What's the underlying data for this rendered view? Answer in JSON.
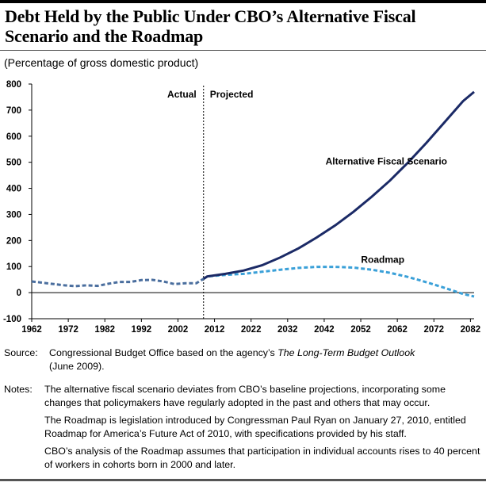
{
  "title_line1": "Debt Held by the Public Under CBO’s Alternative Fiscal",
  "title_line2": "Scenario and the Roadmap",
  "subtitle": "(Percentage of gross domestic product)",
  "source": {
    "label": "Source:",
    "text_before": "Congressional Budget Office based on the agency’s ",
    "italic": "The Long-Term Budget Outlook",
    "text_after": "(June 2009)."
  },
  "notes": {
    "label": "Notes:",
    "para1": "The alternative fiscal scenario deviates from CBO’s baseline projections, incorporating some changes that policymakers have regularly adopted in the past and others that may occur.",
    "para2": "The Roadmap is legislation introduced by Congressman Paul Ryan on January 27, 2010, entitled Roadmap for America’s Future Act of 2010, with specifications provided by his staff.",
    "para3": "CBO’s analysis of the Roadmap assumes that participation in individual accounts rises to 40 percent of workers in cohorts born in 2000 and later."
  },
  "chart_data": {
    "type": "line",
    "title": "Debt Held by the Public Under CBO’s Alternative Fiscal Scenario and the Roadmap",
    "ylabel": "(Percentage of gross domestic product)",
    "xlim": [
      1962,
      2083
    ],
    "ylim": [
      -100,
      800
    ],
    "yticks": [
      -100,
      0,
      100,
      200,
      300,
      400,
      500,
      600,
      700,
      800
    ],
    "xticks": [
      1962,
      1972,
      1982,
      1992,
      2002,
      2012,
      2022,
      2032,
      2042,
      2052,
      2062,
      2072,
      2082
    ],
    "grid": false,
    "divider": {
      "x": 2009,
      "left_label": "Actual",
      "right_label": "Projected"
    },
    "colors": {
      "actual": "#4a6e9e",
      "alternative": "#1b2a66",
      "roadmap": "#3aa0d8"
    },
    "actual": {
      "x": [
        1962,
        1965,
        1968,
        1971,
        1974,
        1977,
        1980,
        1983,
        1986,
        1989,
        1992,
        1995,
        1998,
        2001,
        2004,
        2007,
        2009
      ],
      "y": [
        43,
        38,
        33,
        28,
        25,
        28,
        26,
        34,
        41,
        41,
        48,
        49,
        43,
        33,
        36,
        36,
        53
      ]
    },
    "series": [
      {
        "name": "Alternative Fiscal Scenario",
        "x": [
          2009,
          2010,
          2015,
          2020,
          2025,
          2030,
          2035,
          2040,
          2045,
          2050,
          2055,
          2060,
          2065,
          2070,
          2075,
          2080,
          2083
        ],
        "y": [
          53,
          62,
          72,
          85,
          105,
          135,
          170,
          212,
          258,
          310,
          368,
          430,
          500,
          575,
          655,
          735,
          770
        ]
      },
      {
        "name": "Roadmap",
        "x": [
          2009,
          2010,
          2015,
          2020,
          2025,
          2030,
          2035,
          2040,
          2045,
          2050,
          2055,
          2060,
          2065,
          2070,
          2075,
          2080,
          2083
        ],
        "y": [
          53,
          62,
          68,
          72,
          80,
          88,
          95,
          99,
          99,
          96,
          88,
          76,
          60,
          40,
          18,
          -5,
          -15
        ]
      }
    ]
  }
}
